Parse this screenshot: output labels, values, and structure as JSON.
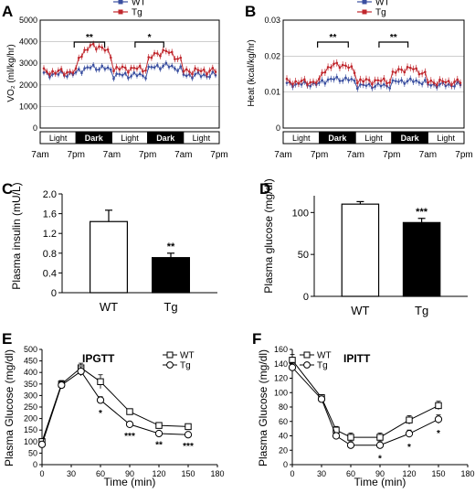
{
  "panels": {
    "A": {
      "letter": "A",
      "ylabel": "VO₂ (ml/kg/hr)"
    },
    "B": {
      "letter": "B",
      "ylabel": "Heat (kcal/kg/hr)"
    },
    "C": {
      "letter": "C",
      "ylabel": "Plasma insulin (mU/L)"
    },
    "D": {
      "letter": "D",
      "ylabel": "Plasma glucose (mg/dl)"
    },
    "E": {
      "letter": "E",
      "title": "IPGTT",
      "ylabel": "Plasma Glucose (mg/dl)",
      "xlabel": "Time (min)"
    },
    "F": {
      "letter": "F",
      "title": "IPITT",
      "ylabel": "Plasma Glucose (mg/dl)",
      "xlabel": "Time (min)"
    }
  },
  "colors": {
    "wt_line": "#3a4fa0",
    "tg_line": "#c0272d",
    "dark_bar": "#000000",
    "axis": "#000000",
    "grid": "#b0b0b0"
  },
  "chart_data": [
    {
      "id": "A",
      "type": "line",
      "x_tick_labels": [
        "7am",
        "7pm",
        "7am",
        "7pm",
        "7am",
        "7pm"
      ],
      "ylim": [
        0,
        5000
      ],
      "y_ticks": [
        0,
        1000,
        2000,
        3000,
        4000,
        5000
      ],
      "grid": true,
      "legend": {
        "position": "top",
        "entries": [
          "WT",
          "Tg"
        ]
      },
      "light_dark_bar": [
        "Light",
        "Dark",
        "Light",
        "Dark",
        "Light"
      ],
      "significance": [
        {
          "label": "**",
          "x": [
            0.19,
            0.36
          ]
        },
        {
          "label": "*",
          "x": [
            0.53,
            0.69
          ]
        }
      ],
      "series": [
        {
          "name": "WT",
          "profile": [
            2500,
            2780,
            2450,
            2850,
            2450
          ],
          "noise": 140,
          "err": 130
        },
        {
          "name": "Tg",
          "profile": [
            2600,
            3700,
            2750,
            3450,
            2650
          ],
          "noise": 150,
          "err": 150
        }
      ]
    },
    {
      "id": "B",
      "type": "line",
      "x_tick_labels": [
        "7am",
        "7pm",
        "7am",
        "7pm",
        "7am",
        "7pm"
      ],
      "ylim": [
        0,
        0.03
      ],
      "y_ticks": [
        0,
        0.01,
        0.02,
        0.03
      ],
      "y_tick_labels": [
        "0",
        "0.01",
        "0.02",
        "0.03"
      ],
      "grid": true,
      "legend": {
        "position": "top",
        "entries": [
          "WT",
          "Tg"
        ]
      },
      "light_dark_bar": [
        "Light",
        "Dark",
        "Light",
        "Dark",
        "Light"
      ],
      "significance": [
        {
          "label": "**",
          "x": [
            0.19,
            0.36
          ]
        },
        {
          "label": "**",
          "x": [
            0.53,
            0.69
          ]
        }
      ],
      "series": [
        {
          "name": "WT",
          "profile": [
            0.0122,
            0.0135,
            0.0118,
            0.013,
            0.012
          ],
          "noise": 0.0007,
          "err": 0.0009
        },
        {
          "name": "Tg",
          "profile": [
            0.0128,
            0.0172,
            0.0131,
            0.0162,
            0.0128
          ],
          "noise": 0.0008,
          "err": 0.001
        }
      ]
    },
    {
      "id": "C",
      "type": "bar",
      "categories": [
        "WT",
        "Tg"
      ],
      "values": [
        1.44,
        0.71
      ],
      "errors": [
        0.23,
        0.09
      ],
      "significance": [
        "",
        "**"
      ],
      "ylim": [
        0,
        2.0
      ],
      "y_ticks": [
        0,
        0.4,
        0.8,
        1.2,
        1.6,
        2.0
      ],
      "y_tick_labels": [
        "0",
        "0.4",
        "0.8",
        "1.2",
        "1.6",
        "2.0"
      ]
    },
    {
      "id": "D",
      "type": "bar",
      "categories": [
        "WT",
        "Tg"
      ],
      "values": [
        110,
        88
      ],
      "errors": [
        3,
        5
      ],
      "significance": [
        "",
        "***"
      ],
      "ylim": [
        0,
        120
      ],
      "y_ticks": [
        0,
        50,
        100
      ],
      "y_tick_labels": [
        "0",
        "50",
        "100"
      ]
    },
    {
      "id": "E",
      "type": "line",
      "x": [
        0,
        20,
        40,
        60,
        90,
        120,
        150
      ],
      "xlim": [
        0,
        180
      ],
      "x_ticks": [
        0,
        30,
        60,
        90,
        120,
        150,
        180
      ],
      "ylim": [
        0,
        500
      ],
      "y_ticks": [
        0,
        50,
        100,
        150,
        200,
        250,
        300,
        350,
        400,
        450,
        500
      ],
      "legend": {
        "position": "top-right",
        "entries": [
          "WT",
          "Tg"
        ]
      },
      "series": [
        {
          "name": "WT",
          "marker": "square",
          "values": [
            100,
            350,
            420,
            360,
            230,
            170,
            165
          ],
          "errors": [
            8,
            15,
            20,
            30,
            10,
            8,
            8
          ]
        },
        {
          "name": "Tg",
          "marker": "circle",
          "values": [
            88,
            345,
            405,
            280,
            175,
            135,
            130
          ],
          "errors": [
            8,
            15,
            20,
            15,
            8,
            6,
            6
          ]
        }
      ],
      "significance": [
        {
          "x": 60,
          "label": "*"
        },
        {
          "x": 90,
          "label": "***"
        },
        {
          "x": 120,
          "label": "**"
        },
        {
          "x": 150,
          "label": "***"
        }
      ]
    },
    {
      "id": "F",
      "type": "line",
      "x": [
        0,
        30,
        45,
        60,
        90,
        120,
        150
      ],
      "xlim": [
        0,
        180
      ],
      "x_ticks": [
        0,
        30,
        60,
        90,
        120,
        150,
        180
      ],
      "ylim": [
        0,
        160
      ],
      "y_ticks": [
        0,
        20,
        40,
        60,
        80,
        100,
        120,
        140,
        160
      ],
      "legend": {
        "position": "top-left",
        "entries": [
          "WT",
          "Tg"
        ]
      },
      "series": [
        {
          "name": "WT",
          "marker": "square",
          "values": [
            145,
            93,
            48,
            38,
            38,
            62,
            82
          ],
          "errors": [
            8,
            4,
            5,
            6,
            6,
            6,
            6
          ]
        },
        {
          "name": "Tg",
          "marker": "circle",
          "values": [
            135,
            91,
            40,
            27,
            27,
            43,
            63
          ],
          "errors": [
            7,
            4,
            4,
            5,
            5,
            5,
            6
          ]
        }
      ],
      "significance": [
        {
          "x": 90,
          "label": "*"
        },
        {
          "x": 120,
          "label": "*"
        },
        {
          "x": 150,
          "label": "*"
        }
      ]
    }
  ]
}
